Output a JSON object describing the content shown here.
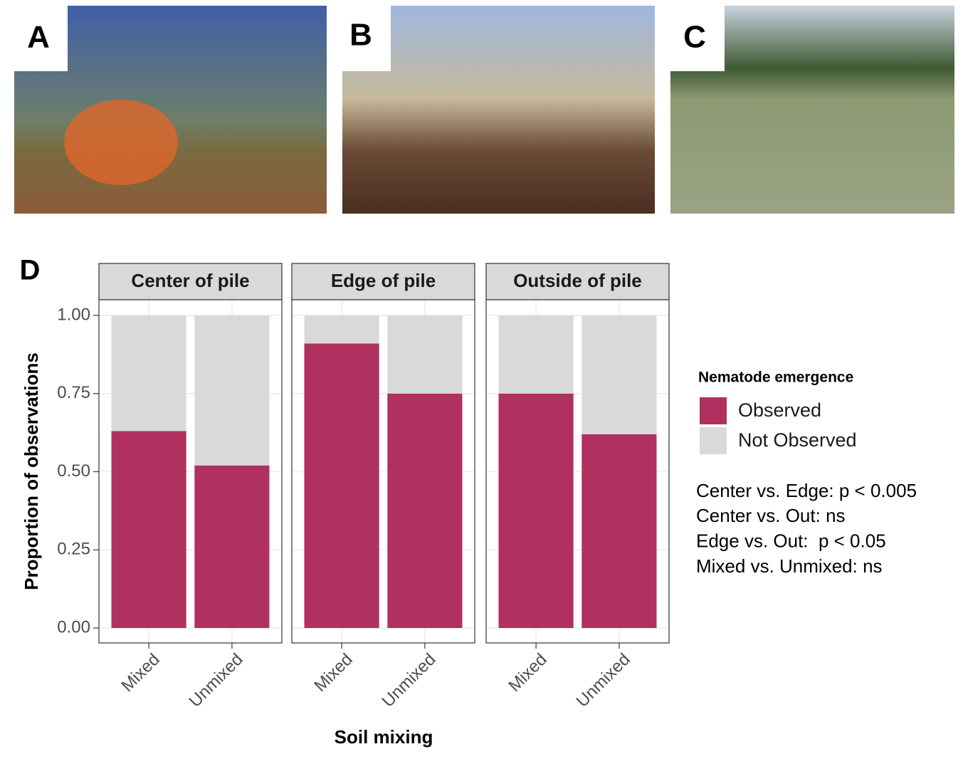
{
  "photos": [
    {
      "label": "A"
    },
    {
      "label": "B"
    },
    {
      "label": "C"
    }
  ],
  "chart_data": {
    "type": "bar",
    "stacked": true,
    "panel_label": "D",
    "facets": [
      "Center of pile",
      "Edge of pile",
      "Outside of pile"
    ],
    "categories": [
      "Mixed",
      "Unmixed"
    ],
    "series": [
      {
        "name": "Observed",
        "color": "#b03060",
        "values": [
          [
            0.63,
            0.52
          ],
          [
            0.91,
            0.75
          ],
          [
            0.75,
            0.62
          ]
        ]
      },
      {
        "name": "Not Observed",
        "color": "#d9d9d9",
        "values": [
          [
            0.37,
            0.48
          ],
          [
            0.09,
            0.25
          ],
          [
            0.25,
            0.38
          ]
        ]
      }
    ],
    "ylim": [
      0,
      1
    ],
    "yticks": [
      {
        "value": 0,
        "label": "0.00"
      },
      {
        "value": 0.25,
        "label": "0.25"
      },
      {
        "value": 0.5,
        "label": "0.50"
      },
      {
        "value": 0.75,
        "label": "0.75"
      },
      {
        "value": 1,
        "label": "1.00"
      }
    ],
    "grid": true,
    "ylabel": "Proportion of observations",
    "xlabel": "Soil mixing",
    "legend_title": "Nematode emergence",
    "annotations": [
      "Center vs. Edge: p < 0.005",
      "Center vs. Out: ns",
      "Edge vs. Out:  p < 0.05",
      "Mixed vs. Unmixed: ns"
    ]
  }
}
